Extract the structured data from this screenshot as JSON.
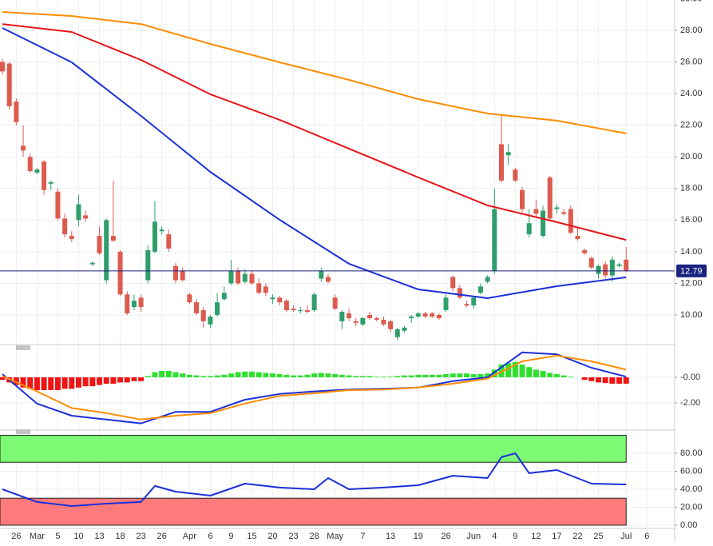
{
  "chart_data": [
    {
      "type": "candlestick",
      "xlim": [
        0,
        97
      ],
      "xticks": [
        {
          "value": 2,
          "label": "26"
        },
        {
          "value": 5,
          "label": "Mar"
        },
        {
          "value": 8,
          "label": "5"
        },
        {
          "value": 11,
          "label": "10"
        },
        {
          "value": 14,
          "label": "13"
        },
        {
          "value": 17,
          "label": "18"
        },
        {
          "value": 20,
          "label": "23"
        },
        {
          "value": 23,
          "label": "26"
        },
        {
          "value": 27,
          "label": "Apr"
        },
        {
          "value": 30,
          "label": "6"
        },
        {
          "value": 33,
          "label": "9"
        },
        {
          "value": 36,
          "label": "15"
        },
        {
          "value": 39,
          "label": "20"
        },
        {
          "value": 42,
          "label": "23"
        },
        {
          "value": 45,
          "label": "28"
        },
        {
          "value": 48,
          "label": "May"
        },
        {
          "value": 52,
          "label": "7"
        },
        {
          "value": 56,
          "label": "13"
        },
        {
          "value": 60,
          "label": "19"
        },
        {
          "value": 64,
          "label": "26"
        },
        {
          "value": 68,
          "label": "Jun"
        },
        {
          "value": 71,
          "label": "4"
        },
        {
          "value": 74,
          "label": "9"
        },
        {
          "value": 77,
          "label": "12"
        },
        {
          "value": 80,
          "label": "17"
        },
        {
          "value": 83,
          "label": "22"
        },
        {
          "value": 86,
          "label": "25"
        },
        {
          "value": 90,
          "label": "Jul"
        },
        {
          "value": 93,
          "label": "6"
        }
      ],
      "ylim": [
        8.18,
        29.92
      ],
      "yticks": [
        {
          "value": 10,
          "label": "10.00"
        },
        {
          "value": 12,
          "label": "12.00"
        },
        {
          "value": 14,
          "label": "14.00"
        },
        {
          "value": 16,
          "label": "16.00"
        },
        {
          "value": 18,
          "label": "18.00"
        },
        {
          "value": 20,
          "label": "20.00"
        },
        {
          "value": 22,
          "label": "22.00"
        },
        {
          "value": 24,
          "label": "24.00"
        },
        {
          "value": 26,
          "label": "26.00"
        },
        {
          "value": 28,
          "label": "28.00"
        },
        {
          "value": 30,
          "label": "30.00"
        }
      ],
      "up_color": "#2e9e6b",
      "down_color": "#dc5a4e",
      "ohlc": [
        [
          26.0,
          26.2,
          25.2,
          25.4
        ],
        [
          25.9,
          26.0,
          23.0,
          23.2
        ],
        [
          23.5,
          23.7,
          22.0,
          22.2
        ],
        [
          20.7,
          22.0,
          20.0,
          20.4
        ],
        [
          20.0,
          20.2,
          19.0,
          19.1
        ],
        [
          19.0,
          19.3,
          18.9,
          19.2
        ],
        [
          19.7,
          19.8,
          17.6,
          17.9
        ],
        [
          18.3,
          18.5,
          17.9,
          18.4
        ],
        [
          17.8,
          18.0,
          16.0,
          16.1
        ],
        [
          16.1,
          16.4,
          14.9,
          15.1
        ],
        [
          15.0,
          15.3,
          14.6,
          14.8
        ],
        [
          16.0,
          17.6,
          15.6,
          17.0
        ],
        [
          16.3,
          16.6,
          15.9,
          16.1
        ],
        [
          13.2,
          13.4,
          13.1,
          13.3
        ],
        [
          15.0,
          15.6,
          13.8,
          13.9
        ],
        [
          12.2,
          16.1,
          12.0,
          16.0
        ],
        [
          15.0,
          18.5,
          14.6,
          14.7
        ],
        [
          14.0,
          14.1,
          11.2,
          11.3
        ],
        [
          11.3,
          11.5,
          10.0,
          10.1
        ],
        [
          10.5,
          11.3,
          10.3,
          10.9
        ],
        [
          11.1,
          11.3,
          10.2,
          10.5
        ],
        [
          12.2,
          14.4,
          12.0,
          14.1
        ],
        [
          14.0,
          17.2,
          13.9,
          15.9
        ],
        [
          15.3,
          15.6,
          15.1,
          15.4
        ],
        [
          15.1,
          15.4,
          14.0,
          14.2
        ],
        [
          13.1,
          13.3,
          12.0,
          12.2
        ],
        [
          12.8,
          13.0,
          12.1,
          12.2
        ],
        [
          11.3,
          11.4,
          10.7,
          10.8
        ],
        [
          10.8,
          11.0,
          10.0,
          10.1
        ],
        [
          10.3,
          10.5,
          9.2,
          9.6
        ],
        [
          9.4,
          10.0,
          9.2,
          9.9
        ],
        [
          10.0,
          11.4,
          9.9,
          10.8
        ],
        [
          11.0,
          11.8,
          10.9,
          11.4
        ],
        [
          12.0,
          13.5,
          11.9,
          12.8
        ],
        [
          12.8,
          13.0,
          11.9,
          12.0
        ],
        [
          12.1,
          12.9,
          12.0,
          12.6
        ],
        [
          12.6,
          12.8,
          11.9,
          12.0
        ],
        [
          12.0,
          12.3,
          11.3,
          11.4
        ],
        [
          11.8,
          12.0,
          11.2,
          11.4
        ],
        [
          11.0,
          11.3,
          10.7,
          11.1
        ],
        [
          11.1,
          11.2,
          10.6,
          10.8
        ],
        [
          10.9,
          11.0,
          10.2,
          10.3
        ],
        [
          10.4,
          10.6,
          10.2,
          10.3
        ],
        [
          10.3,
          10.5,
          10.1,
          10.3
        ],
        [
          10.3,
          10.6,
          10.1,
          10.2
        ],
        [
          10.3,
          11.4,
          10.2,
          11.3
        ],
        [
          12.3,
          13.0,
          12.1,
          12.8
        ],
        [
          12.4,
          12.6,
          12.0,
          12.1
        ],
        [
          11.1,
          11.3,
          10.3,
          10.4
        ],
        [
          9.6,
          10.3,
          9.1,
          10.2
        ],
        [
          10.1,
          10.4,
          9.6,
          9.8
        ],
        [
          9.6,
          9.8,
          9.3,
          9.5
        ],
        [
          9.4,
          9.9,
          9.3,
          9.8
        ],
        [
          10.0,
          10.2,
          9.7,
          9.8
        ],
        [
          9.8,
          9.9,
          9.6,
          9.7
        ],
        [
          9.7,
          9.9,
          9.3,
          9.4
        ],
        [
          9.6,
          9.7,
          8.9,
          9.1
        ],
        [
          8.6,
          9.2,
          8.4,
          9.1
        ],
        [
          9.0,
          9.3,
          8.9,
          9.2
        ],
        [
          9.8,
          10.0,
          9.5,
          9.9
        ],
        [
          9.9,
          10.2,
          9.8,
          10.1
        ],
        [
          10.1,
          10.2,
          9.8,
          9.9
        ],
        [
          10.1,
          10.2,
          9.8,
          9.9
        ],
        [
          10.0,
          10.1,
          9.7,
          9.8
        ],
        [
          10.3,
          11.3,
          10.2,
          11.1
        ],
        [
          12.4,
          12.5,
          11.5,
          11.7
        ],
        [
          11.7,
          11.9,
          11.0,
          11.1
        ],
        [
          10.7,
          10.9,
          10.5,
          10.6
        ],
        [
          10.6,
          11.2,
          10.4,
          11.1
        ],
        [
          11.4,
          12.0,
          11.3,
          11.8
        ],
        [
          12.1,
          12.5,
          12.0,
          12.4
        ],
        [
          12.8,
          18.0,
          12.6,
          16.7
        ],
        [
          20.8,
          22.7,
          18.4,
          18.5
        ],
        [
          20.1,
          20.8,
          19.5,
          20.3
        ],
        [
          19.2,
          19.3,
          18.4,
          18.5
        ],
        [
          17.9,
          18.1,
          16.5,
          16.7
        ],
        [
          15.1,
          16.7,
          14.9,
          15.8
        ],
        [
          16.7,
          17.3,
          16.2,
          16.4
        ],
        [
          15.0,
          16.9,
          14.9,
          16.6
        ],
        [
          18.7,
          18.8,
          16.0,
          16.1
        ],
        [
          16.7,
          17.0,
          16.4,
          16.8
        ],
        [
          16.5,
          16.7,
          16.3,
          16.4
        ],
        [
          16.7,
          16.9,
          15.1,
          15.2
        ],
        [
          15.0,
          15.5,
          14.7,
          14.8
        ],
        [
          14.1,
          14.2,
          13.8,
          13.9
        ],
        [
          13.6,
          13.7,
          12.9,
          13.0
        ],
        [
          12.6,
          13.2,
          12.3,
          13.1
        ],
        [
          13.2,
          13.4,
          12.3,
          12.5
        ],
        [
          12.5,
          13.7,
          12.1,
          13.5
        ],
        [
          13.1,
          13.3,
          13.0,
          13.2
        ],
        [
          13.5,
          14.3,
          12.7,
          12.79
        ]
      ],
      "last_price": 12.79,
      "last_price_color": "#1a237e",
      "lines": [
        {
          "color": "#ff8c00",
          "x": [
            0,
            10,
            20,
            30,
            40,
            50,
            60,
            70,
            80,
            90
          ],
          "values": [
            29.16,
            28.91,
            28.4,
            27.14,
            25.98,
            24.87,
            23.65,
            22.74,
            22.29,
            21.48
          ]
        },
        {
          "color": "#e8161b",
          "x": [
            0,
            10,
            20,
            30,
            40,
            50,
            60,
            70,
            80,
            90
          ],
          "values": [
            28.4,
            27.9,
            26.13,
            23.96,
            22.34,
            20.52,
            18.7,
            16.93,
            15.87,
            14.75
          ]
        },
        {
          "color": "#1c2fd8",
          "x": [
            0,
            10,
            20,
            30,
            40,
            50,
            60,
            70,
            80,
            90
          ],
          "values": [
            28.15,
            25.98,
            22.59,
            19.05,
            16.02,
            13.24,
            11.62,
            11.06,
            11.82,
            12.38
          ]
        }
      ]
    },
    {
      "type": "macd",
      "ylim": [
        -3.94,
        2.125
      ],
      "yticks": [
        {
          "value": 0,
          "label": "-0.00"
        },
        {
          "value": -2,
          "label": "-2.00"
        }
      ],
      "up_color": "#2ee02e",
      "down_color": "#f01414",
      "histogram": [
        -0.2,
        -0.4,
        -0.6,
        -0.8,
        -0.9,
        -1.0,
        -1.0,
        -1.0,
        -1.0,
        -0.9,
        -0.9,
        -0.8,
        -0.7,
        -0.7,
        -0.6,
        -0.5,
        -0.5,
        -0.4,
        -0.4,
        -0.3,
        -0.3,
        0.1,
        0.4,
        0.5,
        0.5,
        0.4,
        0.3,
        0.2,
        0.15,
        0.1,
        0.1,
        0.15,
        0.2,
        0.3,
        0.4,
        0.45,
        0.45,
        0.4,
        0.35,
        0.3,
        0.25,
        0.2,
        0.15,
        0.15,
        0.2,
        0.3,
        0.35,
        0.3,
        0.25,
        0.2,
        0.15,
        0.1,
        0.1,
        0.1,
        0.05,
        0.05,
        0.05,
        0.1,
        0.15,
        0.15,
        0.2,
        0.2,
        0.2,
        0.2,
        0.25,
        0.3,
        0.3,
        0.3,
        0.25,
        0.25,
        0.3,
        0.6,
        1.0,
        1.1,
        1.2,
        1.0,
        0.8,
        0.6,
        0.5,
        0.35,
        0.25,
        0.15,
        0.05,
        0.0,
        -0.2,
        -0.3,
        -0.4,
        -0.45,
        -0.5,
        -0.5,
        -0.5
      ],
      "lines": [
        {
          "color": "#1c2fd8",
          "x": [
            0,
            5,
            10,
            15,
            20,
            25,
            30,
            35,
            40,
            45,
            50,
            55,
            60,
            65,
            70,
            75,
            80,
            85,
            90
          ],
          "values": [
            0.25,
            -2.06,
            -3.0,
            -3.3,
            -3.6,
            -2.7,
            -2.7,
            -1.75,
            -1.3,
            -1.1,
            -0.95,
            -0.9,
            -0.8,
            -0.3,
            0.0,
            1.95,
            1.8,
            0.75,
            0.05
          ]
        },
        {
          "color": "#ff8c00",
          "x": [
            0,
            5,
            10,
            15,
            20,
            25,
            30,
            35,
            40,
            45,
            50,
            55,
            60,
            65,
            70,
            75,
            80,
            85,
            90
          ],
          "values": [
            0.1,
            -1.1,
            -2.4,
            -2.8,
            -3.3,
            -3.0,
            -2.8,
            -2.05,
            -1.45,
            -1.25,
            -1.0,
            -0.95,
            -0.8,
            -0.5,
            -0.1,
            1.25,
            1.7,
            1.25,
            0.6
          ]
        }
      ]
    },
    {
      "type": "rsi",
      "ylim": [
        -2.7,
        101.3
      ],
      "yticks": [
        {
          "value": 0,
          "label": "0.00"
        },
        {
          "value": 20,
          "label": "20.00"
        },
        {
          "value": 40,
          "label": "40.00"
        },
        {
          "value": 60,
          "label": "60.00"
        },
        {
          "value": 80,
          "label": "80.00"
        }
      ],
      "bands": [
        {
          "from": 70,
          "to": 100,
          "color": "#7dfa74"
        },
        {
          "from": 0,
          "to": 30,
          "color": "#ff7b7b"
        }
      ],
      "lines": [
        {
          "color": "#1c2fd8",
          "x": [
            0,
            5,
            10,
            15,
            20,
            22,
            25,
            30,
            35,
            40,
            45,
            47,
            50,
            55,
            60,
            65,
            70,
            72,
            74,
            76,
            80,
            85,
            90
          ],
          "values": [
            40,
            25.8,
            21.3,
            24,
            25.8,
            43.6,
            37.3,
            32.9,
            46.2,
            41.8,
            40,
            52.4,
            40,
            41.8,
            44.4,
            55,
            52.4,
            75.6,
            80,
            57.8,
            61.3,
            46.2,
            45.3
          ]
        }
      ]
    }
  ]
}
